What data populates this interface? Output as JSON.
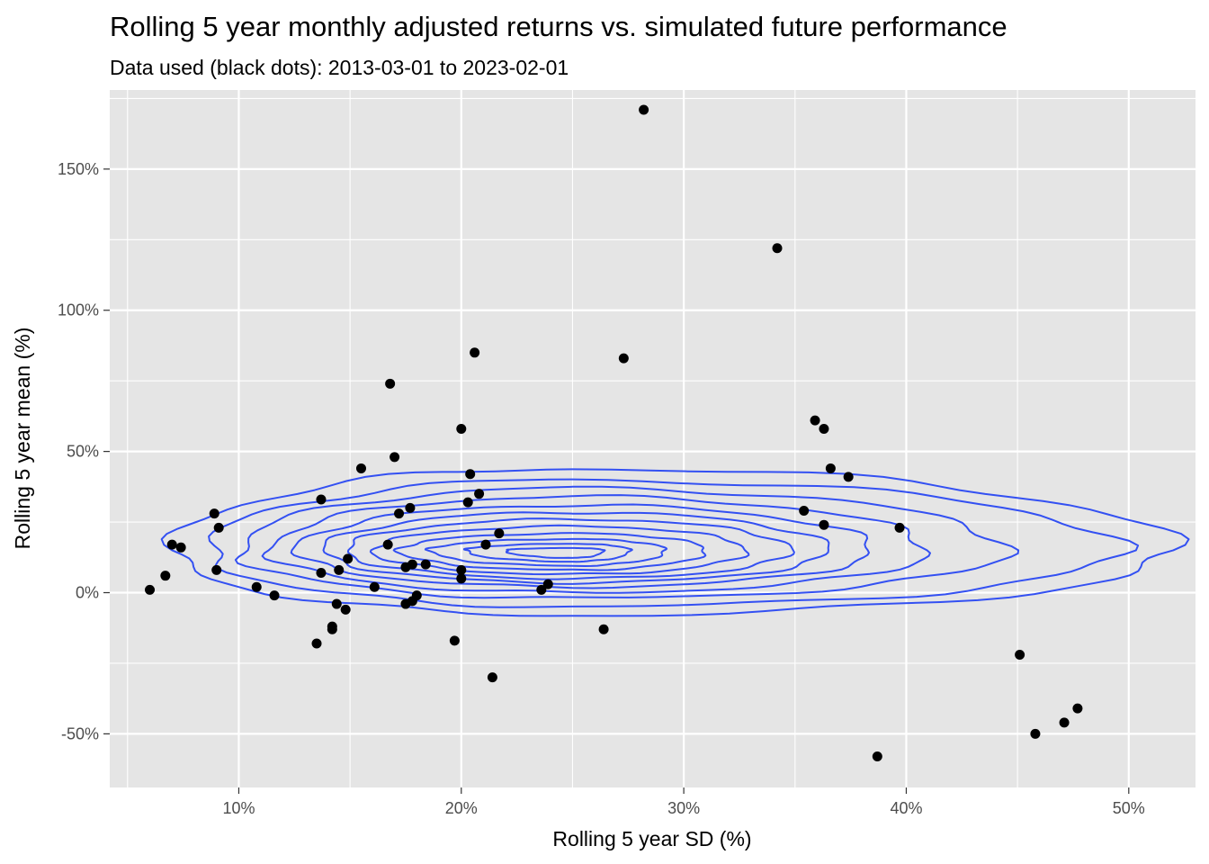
{
  "chart_data": {
    "type": "scatter",
    "title": "Rolling 5 year monthly adjusted returns vs. simulated future performance",
    "subtitle": "Data used (black dots): 2013-03-01 to 2023-02-01",
    "xlabel": "Rolling 5 year SD (%)",
    "ylabel": "Rolling 5 year mean (%)",
    "xlim": [
      4.2,
      53.0
    ],
    "ylim": [
      -69,
      178
    ],
    "x_ticks": [
      10,
      20,
      30,
      40,
      50
    ],
    "x_tick_labels": [
      "10%",
      "20%",
      "30%",
      "40%",
      "50%"
    ],
    "y_ticks": [
      -50,
      0,
      50,
      100,
      150
    ],
    "y_tick_labels": [
      "-50%",
      "0%",
      "50%",
      "100%",
      "150%"
    ],
    "grid": true,
    "background": "#e5e5e5",
    "colors": {
      "points": "#000000",
      "contours": "#3350f2",
      "grid": "#ffffff"
    },
    "contour_center": [
      25,
      15
    ],
    "contours": [
      {
        "level": 1,
        "x_range": [
          7.0,
          52.0
        ],
        "y_range": [
          -8,
          44
        ]
      },
      {
        "level": 2,
        "x_range": [
          8.6,
          49.5
        ],
        "y_range": [
          -5,
          40
        ]
      },
      {
        "level": 3,
        "x_range": [
          10.0,
          44.5
        ],
        "y_range": [
          -2,
          37
        ]
      },
      {
        "level": 4,
        "x_range": [
          11.4,
          41.0
        ],
        "y_range": [
          0,
          34
        ]
      },
      {
        "level": 5,
        "x_range": [
          12.6,
          38.5
        ],
        "y_range": [
          2,
          31
        ]
      },
      {
        "level": 6,
        "x_range": [
          13.8,
          36.5
        ],
        "y_range": [
          3.5,
          28.5
        ]
      },
      {
        "level": 7,
        "x_range": [
          14.8,
          34.8
        ],
        "y_range": [
          5,
          26
        ]
      },
      {
        "level": 8,
        "x_range": [
          16.0,
          32.8
        ],
        "y_range": [
          6.5,
          23.5
        ]
      },
      {
        "level": 9,
        "x_range": [
          17.2,
          31.0
        ],
        "y_range": [
          8,
          21
        ]
      },
      {
        "level": 10,
        "x_range": [
          18.6,
          29.2
        ],
        "y_range": [
          9.5,
          19
        ]
      },
      {
        "level": 11,
        "x_range": [
          20.2,
          27.6
        ],
        "y_range": [
          11,
          17.3
        ]
      },
      {
        "level": 12,
        "x_range": [
          22.0,
          26.4
        ],
        "y_range": [
          12.3,
          15.8
        ]
      }
    ],
    "points": [
      {
        "x": 28.2,
        "y": 171
      },
      {
        "x": 34.2,
        "y": 122
      },
      {
        "x": 20.6,
        "y": 85
      },
      {
        "x": 27.3,
        "y": 83
      },
      {
        "x": 16.8,
        "y": 74
      },
      {
        "x": 35.9,
        "y": 61
      },
      {
        "x": 36.3,
        "y": 58
      },
      {
        "x": 20.0,
        "y": 58
      },
      {
        "x": 17.0,
        "y": 48
      },
      {
        "x": 36.6,
        "y": 44
      },
      {
        "x": 15.5,
        "y": 44
      },
      {
        "x": 20.4,
        "y": 42
      },
      {
        "x": 37.4,
        "y": 41
      },
      {
        "x": 20.8,
        "y": 35
      },
      {
        "x": 13.7,
        "y": 33
      },
      {
        "x": 20.3,
        "y": 32
      },
      {
        "x": 17.7,
        "y": 30
      },
      {
        "x": 35.4,
        "y": 29
      },
      {
        "x": 17.2,
        "y": 28
      },
      {
        "x": 8.9,
        "y": 28
      },
      {
        "x": 36.3,
        "y": 24
      },
      {
        "x": 9.1,
        "y": 23
      },
      {
        "x": 39.7,
        "y": 23
      },
      {
        "x": 21.7,
        "y": 21
      },
      {
        "x": 21.1,
        "y": 17
      },
      {
        "x": 16.7,
        "y": 17
      },
      {
        "x": 7.0,
        "y": 17
      },
      {
        "x": 7.4,
        "y": 16
      },
      {
        "x": 14.9,
        "y": 12
      },
      {
        "x": 18.4,
        "y": 10
      },
      {
        "x": 17.8,
        "y": 10
      },
      {
        "x": 17.5,
        "y": 9
      },
      {
        "x": 9.0,
        "y": 8
      },
      {
        "x": 14.5,
        "y": 8
      },
      {
        "x": 20.0,
        "y": 8
      },
      {
        "x": 13.7,
        "y": 7
      },
      {
        "x": 6.7,
        "y": 6
      },
      {
        "x": 20.0,
        "y": 5
      },
      {
        "x": 23.9,
        "y": 3
      },
      {
        "x": 10.8,
        "y": 2
      },
      {
        "x": 16.1,
        "y": 2
      },
      {
        "x": 6.0,
        "y": 1
      },
      {
        "x": 23.6,
        "y": 1
      },
      {
        "x": 18.0,
        "y": -1
      },
      {
        "x": 11.6,
        "y": -1
      },
      {
        "x": 17.8,
        "y": -3
      },
      {
        "x": 14.4,
        "y": -4
      },
      {
        "x": 17.5,
        "y": -4
      },
      {
        "x": 14.8,
        "y": -6
      },
      {
        "x": 14.2,
        "y": -12
      },
      {
        "x": 14.2,
        "y": -13
      },
      {
        "x": 26.4,
        "y": -13
      },
      {
        "x": 19.7,
        "y": -17
      },
      {
        "x": 13.5,
        "y": -18
      },
      {
        "x": 45.1,
        "y": -22
      },
      {
        "x": 21.4,
        "y": -30
      },
      {
        "x": 47.7,
        "y": -41
      },
      {
        "x": 47.1,
        "y": -46
      },
      {
        "x": 45.8,
        "y": -50
      },
      {
        "x": 38.7,
        "y": -58
      }
    ]
  }
}
